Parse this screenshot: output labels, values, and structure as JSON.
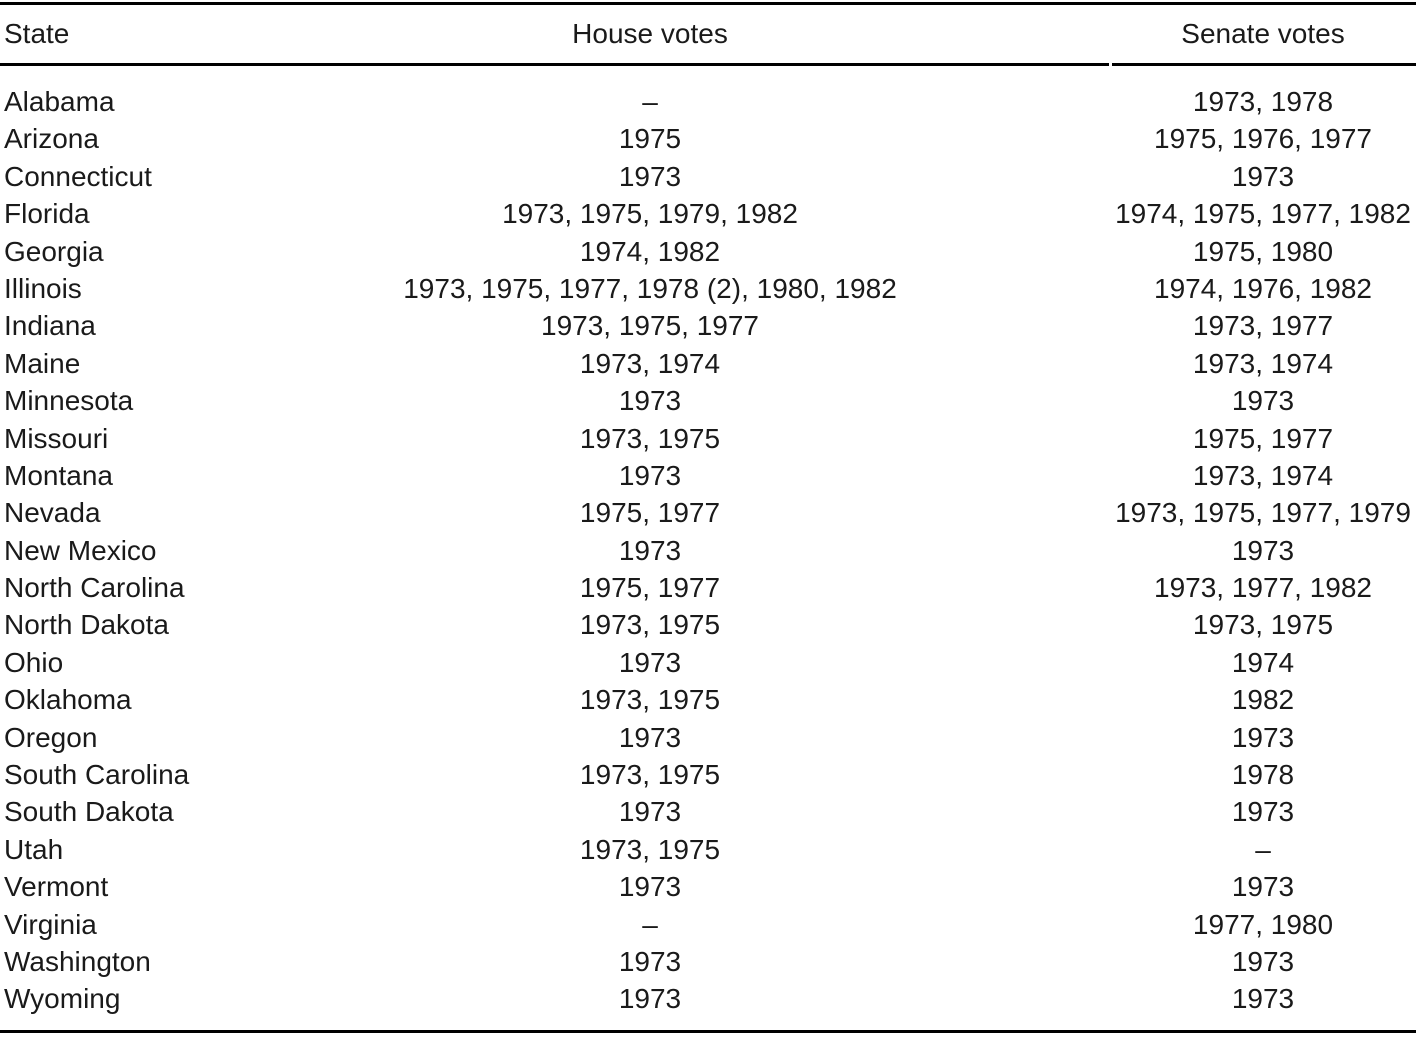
{
  "colors": {
    "background": "#ffffff",
    "text": "#1a1a1a",
    "rule": "#000000"
  },
  "table": {
    "columns": [
      {
        "label": "State"
      },
      {
        "label": "House votes"
      },
      {
        "label": "Senate votes"
      }
    ],
    "empty_marker": "–",
    "rows": [
      {
        "state": "Alabama",
        "house": "–",
        "senate": "1973, 1978"
      },
      {
        "state": "Arizona",
        "house": "1975",
        "senate": "1975, 1976, 1977"
      },
      {
        "state": "Connecticut",
        "house": "1973",
        "senate": "1973"
      },
      {
        "state": "Florida",
        "house": "1973, 1975, 1979, 1982",
        "senate": "1974, 1975, 1977, 1982"
      },
      {
        "state": "Georgia",
        "house": "1974, 1982",
        "senate": "1975, 1980"
      },
      {
        "state": "Illinois",
        "house": "1973, 1975, 1977, 1978 (2), 1980, 1982",
        "senate": "1974, 1976, 1982"
      },
      {
        "state": "Indiana",
        "house": "1973, 1975, 1977",
        "senate": "1973, 1977"
      },
      {
        "state": "Maine",
        "house": "1973, 1974",
        "senate": "1973, 1974"
      },
      {
        "state": "Minnesota",
        "house": "1973",
        "senate": "1973"
      },
      {
        "state": "Missouri",
        "house": "1973, 1975",
        "senate": "1975, 1977"
      },
      {
        "state": "Montana",
        "house": "1973",
        "senate": "1973, 1974"
      },
      {
        "state": "Nevada",
        "house": "1975, 1977",
        "senate": "1973, 1975, 1977, 1979"
      },
      {
        "state": "New Mexico",
        "house": "1973",
        "senate": "1973"
      },
      {
        "state": "North Carolina",
        "house": "1975, 1977",
        "senate": "1973, 1977, 1982"
      },
      {
        "state": "North Dakota",
        "house": "1973, 1975",
        "senate": "1973, 1975"
      },
      {
        "state": "Ohio",
        "house": "1973",
        "senate": "1974"
      },
      {
        "state": "Oklahoma",
        "house": "1973, 1975",
        "senate": "1982"
      },
      {
        "state": "Oregon",
        "house": "1973",
        "senate": "1973"
      },
      {
        "state": "South Carolina",
        "house": "1973, 1975",
        "senate": "1978"
      },
      {
        "state": "South Dakota",
        "house": "1973",
        "senate": "1973"
      },
      {
        "state": "Utah",
        "house": "1973, 1975",
        "senate": "–"
      },
      {
        "state": "Vermont",
        "house": "1973",
        "senate": "1973"
      },
      {
        "state": "Virginia",
        "house": "–",
        "senate": "1977, 1980"
      },
      {
        "state": "Washington",
        "house": "1973",
        "senate": "1973"
      },
      {
        "state": "Wyoming",
        "house": "1973",
        "senate": "1973"
      }
    ]
  }
}
